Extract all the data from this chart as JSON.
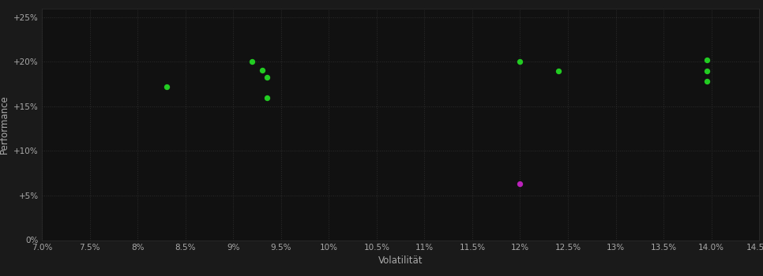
{
  "background_color": "#1a1a1a",
  "plot_bg_color": "#111111",
  "grid_color": "#2d2d2d",
  "text_color": "#aaaaaa",
  "xlabel": "Volatilität",
  "ylabel": "Performance",
  "xlim": [
    0.07,
    0.145
  ],
  "ylim": [
    0.0,
    0.26
  ],
  "green_points": [
    [
      0.083,
      0.172
    ],
    [
      0.092,
      0.2005
    ],
    [
      0.093,
      0.191
    ],
    [
      0.0935,
      0.183
    ],
    [
      0.0935,
      0.16
    ],
    [
      0.12,
      0.2005
    ],
    [
      0.124,
      0.19
    ],
    [
      0.1395,
      0.202
    ],
    [
      0.1395,
      0.19
    ],
    [
      0.1395,
      0.178
    ]
  ],
  "magenta_points": [
    [
      0.12,
      0.063
    ]
  ],
  "green_color": "#22cc22",
  "magenta_color": "#bb22bb",
  "point_size": 28,
  "xlabel_fontsize": 8.5,
  "ylabel_fontsize": 8.5,
  "tick_fontsize": 7.5
}
